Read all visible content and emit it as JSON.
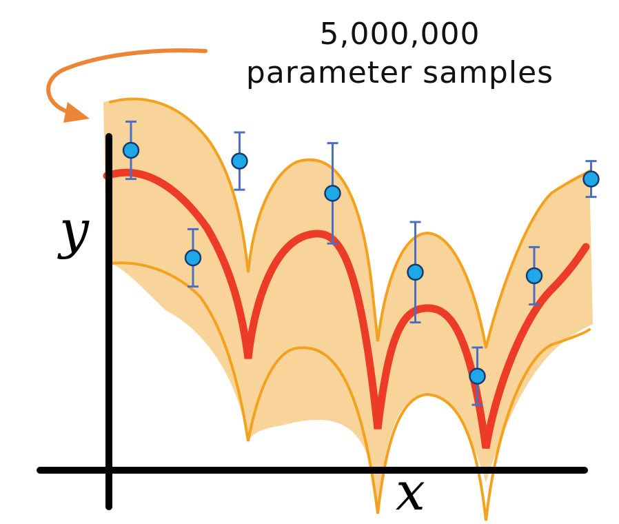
{
  "annotation": {
    "line1": "5,000,000",
    "line2": "parameter samples"
  },
  "axes": {
    "x_label": "x",
    "y_label": "y"
  },
  "colors": {
    "band_fill": "#f9d49a",
    "band_edge": "#f2a21f",
    "mean_curve": "#ec3b26",
    "point_fill": "#1ea8e8",
    "error_bar": "#4a6fc4",
    "arrow": "#ec8536",
    "axis": "#000000"
  },
  "chart_data": {
    "type": "scatter",
    "title": "",
    "xlabel": "x",
    "ylabel": "y",
    "xlim": [
      0,
      10
    ],
    "ylim": [
      0,
      10
    ],
    "points": [
      {
        "x": 0.8,
        "y": 8.5,
        "err": 0.8
      },
      {
        "x": 2.0,
        "y": 5.5,
        "err": 0.8
      },
      {
        "x": 2.9,
        "y": 8.2,
        "err": 0.8
      },
      {
        "x": 4.7,
        "y": 7.3,
        "err": 1.4
      },
      {
        "x": 6.3,
        "y": 5.1,
        "err": 1.4
      },
      {
        "x": 7.5,
        "y": 2.2,
        "err": 0.8
      },
      {
        "x": 8.6,
        "y": 5.0,
        "err": 0.8
      },
      {
        "x": 9.7,
        "y": 7.7,
        "err": 0.5
      }
    ]
  }
}
